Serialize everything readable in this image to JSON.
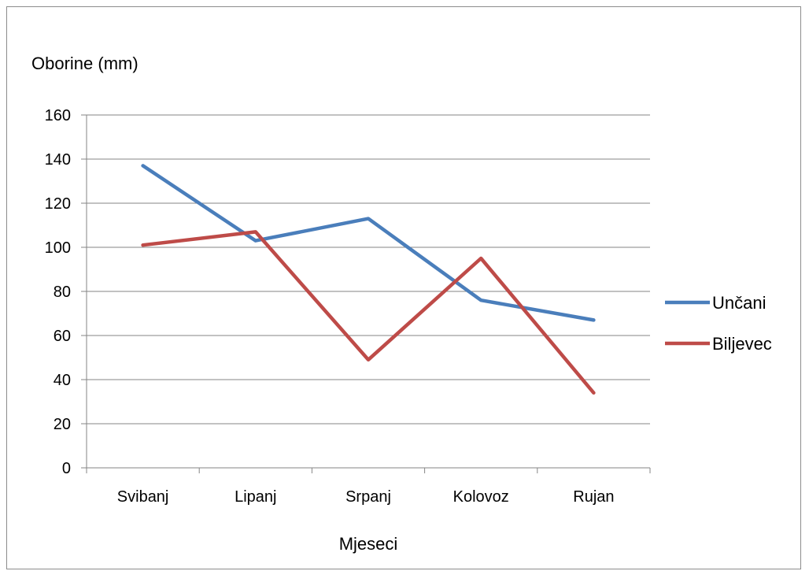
{
  "chart_data": {
    "type": "line",
    "title": "",
    "ylabel": "Oborine (mm)",
    "xlabel": "Mjeseci",
    "categories": [
      "Svibanj",
      "Lipanj",
      "Srpanj",
      "Kolovoz",
      "Rujan"
    ],
    "yticks": [
      "0",
      "20",
      "40",
      "60",
      "80",
      "100",
      "120",
      "140",
      "160"
    ],
    "ylim": [
      0,
      160
    ],
    "grid": true,
    "legend_position": "right",
    "series": [
      {
        "name": "Unčani",
        "color": "#4a7ebb",
        "values": [
          137,
          103,
          113,
          76,
          67
        ]
      },
      {
        "name": "Biljevec",
        "color": "#be4b48",
        "values": [
          101,
          107,
          49,
          95,
          34
        ]
      }
    ]
  }
}
